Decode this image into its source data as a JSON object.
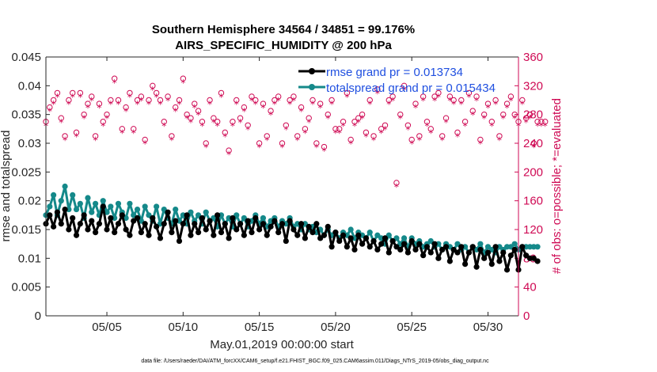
{
  "colors": {
    "rmse": "#000000",
    "spread": "#15898a",
    "obs": "#cf0a54",
    "legend_text": "#1f4fe0",
    "axis": "#262626"
  },
  "chart_data": {
    "type": "line",
    "title_line1": "Southern Hemisphere 34564 / 34851 = 99.176%",
    "title_line2": "AIRS_SPECIFIC_HUMIDITY @ 200 hPa",
    "xlabel": "May.01,2019 00:00:00 start",
    "ylabel_left": "rmse and totalspread",
    "ylabel_right": "# of obs: o=possible; *=evaluated",
    "footnote": "data file: /Users/raeder/DAI/ATM_forcXX/CAM6_setup/f.e21.FHIST_BGC.f09_025.CAM6assim.011/Diags_NTrS_2019-05/obs_diag_output.nc",
    "xlim": [
      1,
      32
    ],
    "ylim_left": [
      0,
      0.045
    ],
    "ylim_right": [
      0,
      360
    ],
    "left_ticks": [
      "0",
      "0.005",
      "0.01",
      "0.015",
      "0.02",
      "0.025",
      "0.03",
      "0.035",
      "0.04",
      "0.045"
    ],
    "right_ticks": [
      "0",
      "40",
      "80",
      "120",
      "160",
      "200",
      "240",
      "280",
      "320",
      "360"
    ],
    "x_tick_labels": [
      "05/05",
      "05/10",
      "05/15",
      "05/20",
      "05/25",
      "05/30"
    ],
    "x_tick_values": [
      5,
      10,
      15,
      20,
      25,
      30
    ],
    "legend": [
      {
        "name": "rmse grand pr = 0.013734",
        "series": "rmse"
      },
      {
        "name": "totalspread grand pr = 0.015434",
        "series": "spread"
      }
    ],
    "x_start": 1.0,
    "x_step": 0.25,
    "series": [
      {
        "name": "rmse",
        "axis": "left",
        "values": [
          0.016,
          0.0175,
          0.0155,
          0.018,
          0.016,
          0.0185,
          0.015,
          0.017,
          0.014,
          0.016,
          0.0175,
          0.015,
          0.0165,
          0.0145,
          0.016,
          0.019,
          0.015,
          0.017,
          0.0145,
          0.016,
          0.0175,
          0.015,
          0.014,
          0.0165,
          0.017,
          0.0145,
          0.016,
          0.014,
          0.017,
          0.0155,
          0.0135,
          0.016,
          0.018,
          0.0145,
          0.0165,
          0.013,
          0.016,
          0.0175,
          0.014,
          0.016,
          0.0145,
          0.017,
          0.015,
          0.0165,
          0.014,
          0.0175,
          0.0145,
          0.016,
          0.0135,
          0.017,
          0.015,
          0.016,
          0.014,
          0.0165,
          0.0145,
          0.017,
          0.015,
          0.016,
          0.014,
          0.0155,
          0.0165,
          0.0145,
          0.016,
          0.013,
          0.0165,
          0.015,
          0.014,
          0.016,
          0.0135,
          0.0155,
          0.0145,
          0.016,
          0.0135,
          0.014,
          0.0155,
          0.012,
          0.0145,
          0.013,
          0.014,
          0.012,
          0.0135,
          0.0115,
          0.014,
          0.0125,
          0.0135,
          0.012,
          0.013,
          0.0115,
          0.0125,
          0.0135,
          0.011,
          0.013,
          0.012,
          0.0115,
          0.0125,
          0.011,
          0.013,
          0.0115,
          0.0125,
          0.0105,
          0.012,
          0.011,
          0.0125,
          0.01,
          0.0115,
          0.012,
          0.0095,
          0.0115,
          0.011,
          0.012,
          0.009,
          0.011,
          0.012,
          0.0085,
          0.0115,
          0.01,
          0.011,
          0.009,
          0.012,
          0.0095,
          0.011,
          0.008,
          0.0105,
          0.0115,
          0.008,
          0.012,
          0.0105,
          0.01,
          0.01,
          0.0095
        ]
      },
      {
        "name": "totalspread",
        "axis": "left",
        "values": [
          0.0175,
          0.019,
          0.021,
          0.0175,
          0.02,
          0.0225,
          0.0185,
          0.021,
          0.0185,
          0.0195,
          0.017,
          0.0205,
          0.018,
          0.0195,
          0.0175,
          0.02,
          0.018,
          0.019,
          0.017,
          0.0195,
          0.018,
          0.017,
          0.0195,
          0.0175,
          0.0185,
          0.0165,
          0.019,
          0.0175,
          0.0165,
          0.019,
          0.016,
          0.0185,
          0.017,
          0.016,
          0.0185,
          0.0165,
          0.0175,
          0.016,
          0.018,
          0.0165,
          0.0175,
          0.016,
          0.018,
          0.0165,
          0.017,
          0.0155,
          0.0175,
          0.016,
          0.017,
          0.0155,
          0.0175,
          0.016,
          0.017,
          0.0155,
          0.0165,
          0.0175,
          0.016,
          0.017,
          0.0155,
          0.0165,
          0.017,
          0.0155,
          0.0165,
          0.016,
          0.017,
          0.0155,
          0.016,
          0.015,
          0.016,
          0.015,
          0.0155,
          0.0145,
          0.015,
          0.014,
          0.015,
          0.014,
          0.0145,
          0.0135,
          0.0145,
          0.014,
          0.015,
          0.0135,
          0.0145,
          0.014,
          0.0135,
          0.0145,
          0.013,
          0.014,
          0.0135,
          0.0125,
          0.014,
          0.013,
          0.0135,
          0.0125,
          0.0135,
          0.012,
          0.0135,
          0.0125,
          0.013,
          0.012,
          0.0125,
          0.013,
          0.012,
          0.0125,
          0.0115,
          0.0125,
          0.012,
          0.0115,
          0.0125,
          0.0115,
          0.012,
          0.011,
          0.012,
          0.0115,
          0.0125,
          0.011,
          0.012,
          0.0115,
          0.011,
          0.012,
          0.0115,
          0.012,
          0.012,
          0.0125,
          0.0115,
          0.012,
          0.012,
          0.012,
          0.012,
          0.012
        ]
      },
      {
        "name": "possible",
        "axis": "right",
        "values": [
          270,
          290,
          300,
          310,
          275,
          250,
          300,
          310,
          255,
          310,
          280,
          295,
          305,
          250,
          295,
          270,
          280,
          300,
          330,
          300,
          260,
          290,
          310,
          260,
          300,
          305,
          245,
          300,
          320,
          310,
          300,
          270,
          305,
          250,
          290,
          300,
          330,
          280,
          275,
          295,
          285,
          270,
          240,
          300,
          275,
          270,
          310,
          255,
          230,
          270,
          300,
          275,
          290,
          265,
          305,
          300,
          240,
          295,
          250,
          285,
          300,
          305,
          240,
          265,
          300,
          305,
          250,
          290,
          260,
          275,
          300,
          240,
          295,
          235,
          280,
          300,
          260,
          260,
          270,
          310,
          245,
          270,
          275,
          280,
          255,
          300,
          250,
          315,
          260,
          265,
          300,
          305,
          185,
          280,
          320,
          265,
          245,
          295,
          250,
          305,
          270,
          260,
          305,
          310,
          250,
          275,
          305,
          300,
          255,
          300,
          270,
          310,
          285,
          305,
          245,
          280,
          295,
          270,
          300,
          250,
          280,
          295,
          305,
          280,
          270,
          300,
          275,
          280,
          240,
          270,
          270,
          270
        ]
      },
      {
        "name": "evaluated",
        "axis": "right",
        "values": [
          265,
          285,
          295,
          305,
          270,
          245,
          295,
          305,
          250,
          305,
          275,
          290,
          300,
          245,
          290,
          265,
          275,
          295,
          325,
          295,
          255,
          285,
          305,
          255,
          295,
          300,
          240,
          295,
          315,
          305,
          295,
          265,
          300,
          245,
          285,
          295,
          325,
          275,
          270,
          290,
          280,
          265,
          235,
          295,
          270,
          265,
          305,
          250,
          225,
          265,
          295,
          270,
          285,
          260,
          300,
          295,
          235,
          290,
          245,
          280,
          295,
          300,
          235,
          260,
          295,
          300,
          245,
          285,
          255,
          270,
          295,
          235,
          290,
          230,
          275,
          295,
          255,
          255,
          265,
          305,
          240,
          265,
          270,
          275,
          250,
          295,
          245,
          310,
          255,
          260,
          295,
          300,
          180,
          275,
          315,
          260,
          240,
          290,
          245,
          300,
          265,
          255,
          300,
          305,
          245,
          270,
          300,
          295,
          250,
          295,
          265,
          305,
          280,
          300,
          240,
          275,
          290,
          265,
          295,
          245,
          275,
          290,
          300,
          275,
          265,
          295,
          270,
          275,
          235,
          265,
          265,
          265
        ]
      }
    ]
  }
}
